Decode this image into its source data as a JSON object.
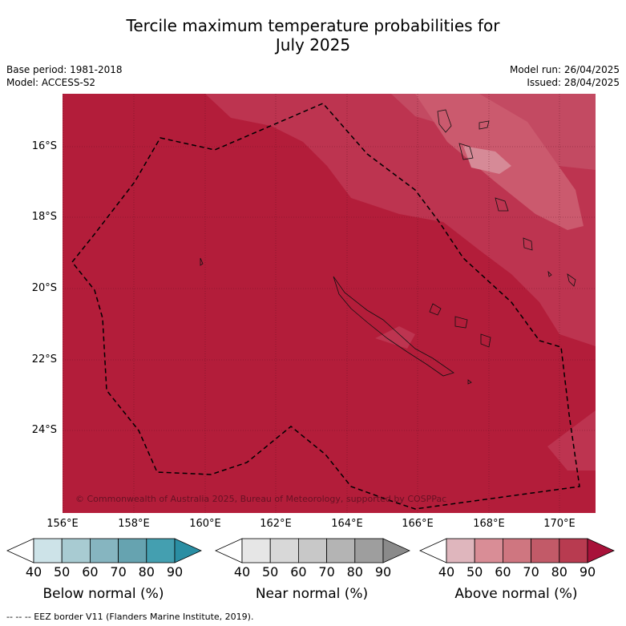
{
  "title": {
    "line1": "Tercile maximum temperature probabilities for",
    "line2": "July 2025"
  },
  "meta": {
    "base_period": "Base period: 1981-2018",
    "model": "Model: ACCESS-S2",
    "model_run": "Model run: 26/04/2025",
    "issued": "Issued: 28/04/2025"
  },
  "axes": {
    "y_ticks": [
      "16°S",
      "18°S",
      "20°S",
      "22°S",
      "24°S"
    ],
    "x_ticks": [
      "156°E",
      "158°E",
      "160°E",
      "162°E",
      "164°E",
      "166°E",
      "168°E",
      "170°E"
    ]
  },
  "copyright": "© Commonwealth of Australia 2025, Bureau of Meteorology, supported by COSPPac",
  "colorbars": [
    {
      "title": "Below normal (%)",
      "labels": [
        "40",
        "50",
        "60",
        "70",
        "80",
        "90"
      ],
      "colors": [
        "#ffffff",
        "#cde3e8",
        "#a8cbd2",
        "#86b5c0",
        "#66a3b0",
        "#449fb0",
        "#2a8ea3"
      ]
    },
    {
      "title": "Near normal (%)",
      "labels": [
        "40",
        "50",
        "60",
        "70",
        "80",
        "90"
      ],
      "colors": [
        "#ffffff",
        "#e6e6e6",
        "#d8d8d8",
        "#c8c8c8",
        "#b4b4b4",
        "#9e9e9e",
        "#8a8a8a"
      ]
    },
    {
      "title": "Above normal (%)",
      "labels": [
        "40",
        "50",
        "60",
        "70",
        "80",
        "90"
      ],
      "colors": [
        "#ffffff",
        "#dfb6bd",
        "#d98d96",
        "#cf7680",
        "#c25a68",
        "#b83b50",
        "#a8123a"
      ]
    }
  ],
  "footer": "-- -- -- EEZ border V11 (Flanders Marine Institute, 2019).",
  "colors": {
    "dominant": "#b31d3a",
    "medium": "#c03a52",
    "light": "#cb5a6e",
    "lightest": "#d68a97"
  }
}
